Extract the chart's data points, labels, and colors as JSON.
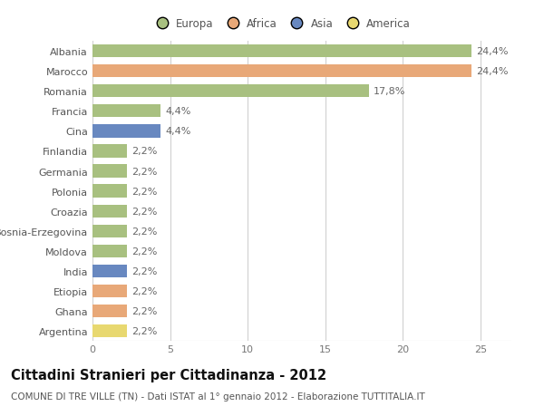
{
  "categories": [
    "Albania",
    "Marocco",
    "Romania",
    "Francia",
    "Cina",
    "Finlandia",
    "Germania",
    "Polonia",
    "Croazia",
    "Bosnia-Erzegovina",
    "Moldova",
    "India",
    "Etiopia",
    "Ghana",
    "Argentina"
  ],
  "values": [
    24.4,
    24.4,
    17.8,
    4.4,
    4.4,
    2.2,
    2.2,
    2.2,
    2.2,
    2.2,
    2.2,
    2.2,
    2.2,
    2.2,
    2.2
  ],
  "colors": [
    "#a8c080",
    "#e8a878",
    "#a8c080",
    "#a8c080",
    "#6888c0",
    "#a8c080",
    "#a8c080",
    "#a8c080",
    "#a8c080",
    "#a8c080",
    "#a8c080",
    "#6888c0",
    "#e8a878",
    "#e8a878",
    "#e8d870"
  ],
  "labels": [
    "24,4%",
    "24,4%",
    "17,8%",
    "4,4%",
    "4,4%",
    "2,2%",
    "2,2%",
    "2,2%",
    "2,2%",
    "2,2%",
    "2,2%",
    "2,2%",
    "2,2%",
    "2,2%",
    "2,2%"
  ],
  "xlim": [
    0,
    27
  ],
  "xticks": [
    0,
    5,
    10,
    15,
    20,
    25
  ],
  "legend_labels": [
    "Europa",
    "Africa",
    "Asia",
    "America"
  ],
  "legend_colors": [
    "#a8c080",
    "#e8a878",
    "#6888c0",
    "#e8d870"
  ],
  "title": "Cittadini Stranieri per Cittadinanza - 2012",
  "subtitle": "COMUNE DI TRE VILLE (TN) - Dati ISTAT al 1° gennaio 2012 - Elaborazione TUTTITALIA.IT",
  "bg_color": "#ffffff",
  "grid_color": "#d0d0d0",
  "bar_height": 0.65,
  "label_fontsize": 8.0,
  "tick_fontsize": 8.0,
  "title_fontsize": 10.5,
  "subtitle_fontsize": 7.5
}
